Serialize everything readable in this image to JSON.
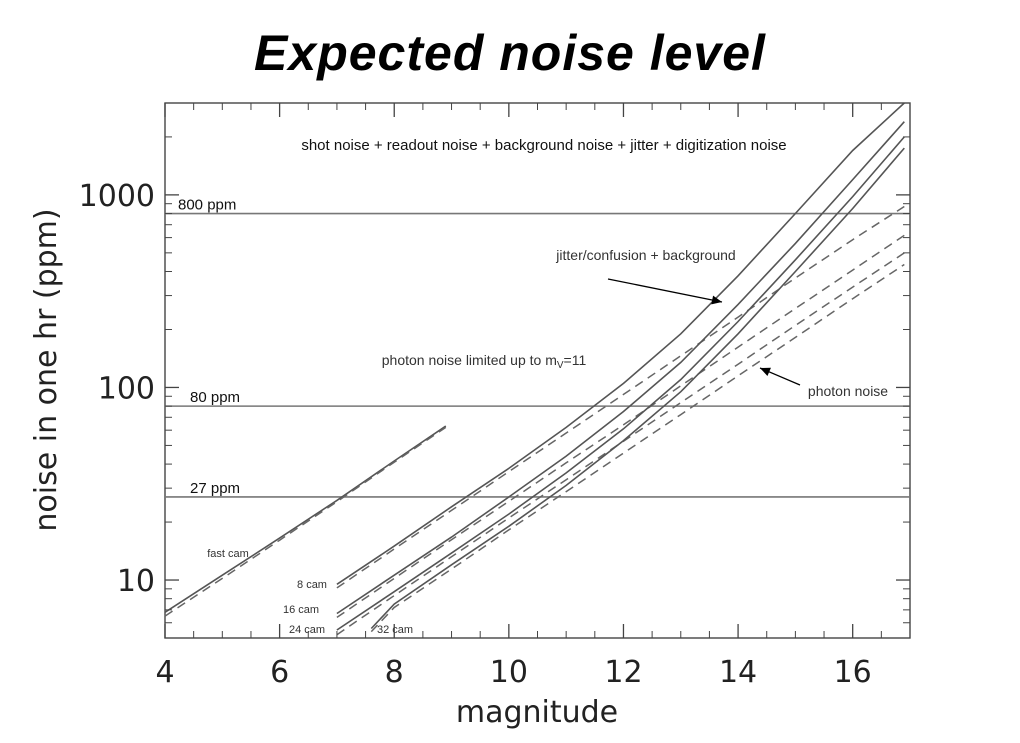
{
  "title": "Expected noise level",
  "chart_data": {
    "type": "line",
    "x_scale": "linear",
    "y_scale": "log",
    "xlim": [
      4,
      17
    ],
    "ylim": [
      5,
      3000
    ],
    "xlabel": "magnitude",
    "ylabel": "noise in one hr (ppm)",
    "x_ticks": [
      "4",
      "6",
      "8",
      "10",
      "12",
      "14",
      "16"
    ],
    "y_ticks": [
      "10",
      "100",
      "1000"
    ],
    "grid": false,
    "annotations": {
      "total_noise": "shot noise + readout noise + background noise + jitter + digitization noise",
      "jitter_bg": "jitter/confusion + background",
      "photon_limited_prefix": "photon noise limited up to m",
      "photon_limited_sub": "V",
      "photon_limited_suffix": "=11",
      "photon_noise": "photon noise"
    },
    "hlines": [
      {
        "label": "800 ppm",
        "y": 800
      },
      {
        "label": "80 ppm",
        "y": 80
      },
      {
        "label": "27 ppm",
        "y": 27
      }
    ],
    "series": [
      {
        "name": "fast cam",
        "style": "solid",
        "x": [
          4,
          5,
          6,
          7,
          8,
          8.9
        ],
        "y": [
          6.8,
          10.6,
          16.5,
          25.9,
          41.5,
          63
        ]
      },
      {
        "name": "fast cam",
        "style": "dashed",
        "x": [
          4,
          5,
          6,
          7,
          8,
          8.9
        ],
        "y": [
          6.5,
          10.2,
          16.1,
          25.5,
          40.9,
          62
        ]
      },
      {
        "name": "8 cam",
        "style": "solid",
        "x": [
          7,
          8,
          9,
          10,
          11,
          12,
          13,
          14,
          15,
          16,
          16.9
        ],
        "y": [
          9.5,
          15,
          24,
          38,
          62,
          105,
          190,
          380,
          800,
          1700,
          3000
        ]
      },
      {
        "name": "8 cam",
        "style": "dashed",
        "x": [
          7,
          8,
          9,
          10,
          11,
          12,
          13,
          14,
          15,
          16,
          16.9
        ],
        "y": [
          9.1,
          14.5,
          23,
          36.5,
          58,
          92,
          146,
          232,
          370,
          585,
          870
        ]
      },
      {
        "name": "16 cam",
        "style": "solid",
        "x": [
          7,
          8,
          9,
          10,
          11,
          12,
          13,
          14,
          15,
          16,
          16.9
        ],
        "y": [
          6.7,
          10.6,
          16.7,
          27,
          44,
          75,
          135,
          270,
          560,
          1200,
          2400
        ]
      },
      {
        "name": "16 cam",
        "style": "dashed",
        "x": [
          7,
          8,
          9,
          10,
          11,
          12,
          13,
          14,
          15,
          16,
          16.9
        ],
        "y": [
          6.4,
          10.2,
          16.2,
          25.6,
          40.6,
          64,
          102,
          162,
          257,
          407,
          616
        ]
      },
      {
        "name": "24 cam",
        "style": "solid",
        "x": [
          7,
          8,
          9,
          10,
          11,
          12,
          13,
          14,
          15,
          16,
          16.9
        ],
        "y": [
          5.5,
          8.7,
          13.8,
          22,
          36,
          61,
          110,
          220,
          460,
          980,
          2000
        ]
      },
      {
        "name": "24 cam",
        "style": "dashed",
        "x": [
          7,
          8,
          9,
          10,
          11,
          12,
          13,
          14,
          15,
          16,
          16.9
        ],
        "y": [
          5.2,
          8.3,
          13.2,
          21,
          33.2,
          52.6,
          83.4,
          132,
          210,
          332,
          500
        ]
      },
      {
        "name": "32 cam",
        "style": "solid",
        "x": [
          7.6,
          8,
          9,
          10,
          11,
          12,
          13,
          14,
          15,
          16,
          16.9
        ],
        "y": [
          5.6,
          7.5,
          12,
          19,
          31,
          53,
          95,
          190,
          400,
          850,
          1750
        ]
      },
      {
        "name": "32 cam",
        "style": "dashed",
        "x": [
          7.6,
          8,
          9,
          10,
          11,
          12,
          13,
          14,
          15,
          16,
          16.9
        ],
        "y": [
          5.4,
          7.2,
          11.4,
          18.2,
          28.8,
          45.6,
          72.3,
          115,
          182,
          289,
          435
        ]
      }
    ],
    "curve_labels": [
      {
        "text": "fast cam",
        "series": "fast cam"
      },
      {
        "text": "8 cam",
        "series": "8 cam"
      },
      {
        "text": "16 cam",
        "series": "16 cam"
      },
      {
        "text": "24 cam",
        "series": "24 cam"
      },
      {
        "text": "32 cam",
        "series": "32 cam"
      }
    ]
  }
}
